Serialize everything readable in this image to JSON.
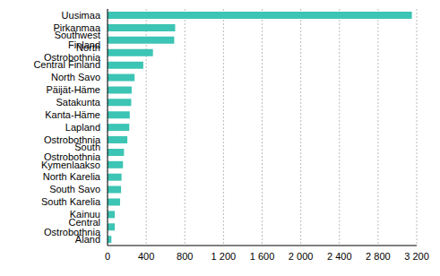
{
  "chart_data": {
    "type": "bar",
    "orientation": "horizontal",
    "categories": [
      "Uusimaa",
      "Pirkanmaa",
      "Southwest Finland",
      "North Ostrobothnia",
      "Central Finland",
      "North Savo",
      "Päijät-Häme",
      "Satakunta",
      "Kanta-Häme",
      "Lapland",
      "Ostrobothnia",
      "South Ostrobothnia",
      "Kymenlaakso",
      "North Karelia",
      "South Savo",
      "South Karelia",
      "Kainuu",
      "Central Ostrobothnia",
      "Åland"
    ],
    "values": [
      3150,
      700,
      690,
      470,
      370,
      280,
      250,
      245,
      230,
      225,
      205,
      170,
      160,
      145,
      140,
      130,
      75,
      75,
      40
    ],
    "color": "#3cc4b4",
    "xlim": [
      0,
      3200
    ],
    "xticks": [
      0,
      400,
      800,
      {
        "value": 1200,
        "label": "1 200"
      },
      {
        "value": 1600,
        "label": "1 600"
      },
      {
        "value": 2000,
        "label": "2 000"
      },
      {
        "value": 2400,
        "label": "2 400"
      },
      {
        "value": 2800,
        "label": "2 800"
      },
      {
        "value": 3200,
        "label": "3 200"
      }
    ],
    "grid": true
  }
}
